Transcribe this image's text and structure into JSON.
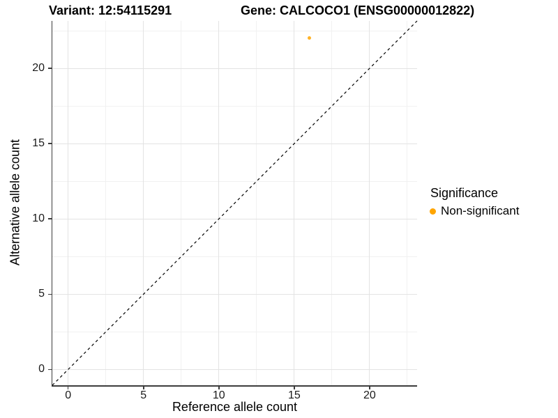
{
  "header": {
    "variant_title": "Variant: 12:54115291",
    "gene_title": "Gene: CALCOCO1 (ENSG00000012822)"
  },
  "axes": {
    "x": {
      "label": "Reference allele count",
      "range": [
        -1.05,
        23.15
      ],
      "major_ticks": [
        0,
        5,
        10,
        15,
        20
      ],
      "minor_ticks": [
        2.5,
        7.5,
        12.5,
        17.5,
        22.5
      ]
    },
    "y": {
      "label": "Alternative allele count",
      "range": [
        -1.05,
        23.15
      ],
      "major_ticks": [
        0,
        5,
        10,
        15,
        20
      ],
      "minor_ticks": [
        2.5,
        7.5,
        12.5,
        17.5,
        22.5
      ]
    }
  },
  "legend": {
    "title": "Significance",
    "items": [
      {
        "label": "Non-significant",
        "color": "#FFA500"
      }
    ]
  },
  "chart_data": {
    "type": "scatter",
    "title": "Variant: 12:54115291    Gene: CALCOCO1 (ENSG00000012822)",
    "xlabel": "Reference allele count",
    "ylabel": "Alternative allele count",
    "xlim": [
      -1.05,
      23.15
    ],
    "ylim": [
      -1.05,
      23.15
    ],
    "x_ticks": [
      0,
      5,
      10,
      15,
      20
    ],
    "y_ticks": [
      0,
      5,
      10,
      15,
      20
    ],
    "grid": "major and minor gridlines, light gray on white",
    "legend_position": "right-center",
    "series": [
      {
        "name": "Non-significant",
        "color": "#FFA500",
        "marker": "circle",
        "points": [
          {
            "x": 16,
            "y": 22
          }
        ]
      }
    ],
    "reference_line": {
      "kind": "identity y = x",
      "style": "dashed",
      "color": "#000000",
      "from": [
        -1.05,
        -1.05
      ],
      "to": [
        23.15,
        23.15
      ]
    }
  },
  "colors": {
    "background": "#ffffff",
    "axis_line": "#3c3c3c",
    "grid_major": "#e3e3e3",
    "grid_minor": "#f1f1f1",
    "point": "#FFA500",
    "reference_line": "#000000",
    "text": "#000000"
  }
}
